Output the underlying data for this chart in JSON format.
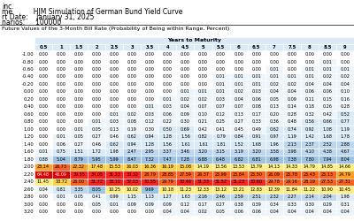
{
  "title_line1": "inc.",
  "label_name": "me",
  "label_start": "rt Date:",
  "label_scen": "narios:",
  "title_line2": "HJM Simulation of German Bund Yield Curve",
  "start_date": "January 31, 2025",
  "scenarios": "100000",
  "table_title": "Future Values of the 3-Month Bill Rate (Probability of Being within Range, Percent)",
  "col_header": "Years to Maturity",
  "col_labels": [
    "0.5",
    "1",
    "1.5",
    "2",
    "2.5",
    "3",
    "3.5",
    "4",
    "4.5",
    "5",
    "5.5",
    "6",
    "6.5",
    "7",
    "7.5",
    "8",
    "8.5",
    "9"
  ],
  "row_labels": [
    "-1.00",
    "-0.80",
    "-0.60",
    "-0.40",
    "-0.20",
    "0.00",
    "0.20",
    "0.40",
    "0.60",
    "0.80",
    "1.00",
    "1.20",
    "1.40",
    "1.60",
    "1.80",
    "2.00",
    "2.20",
    "2.40",
    "2.60",
    "2.80",
    "3.00",
    "3.20"
  ],
  "data": [
    [
      0.0,
      0.0,
      0.0,
      0.0,
      0.0,
      0.0,
      0.0,
      0.0,
      0.0,
      0.0,
      0.0,
      0.0,
      0.0,
      0.0,
      0.0,
      0.0,
      0.0,
      0.0
    ],
    [
      0.0,
      0.0,
      0.0,
      0.0,
      0.0,
      0.0,
      0.0,
      0.0,
      0.0,
      0.0,
      0.0,
      0.0,
      0.0,
      0.0,
      0.0,
      0.0,
      0.01,
      0.0
    ],
    [
      0.0,
      0.0,
      0.0,
      0.0,
      0.0,
      0.0,
      0.0,
      0.0,
      0.0,
      0.0,
      0.0,
      0.0,
      0.0,
      0.01,
      0.0,
      0.01,
      0.01,
      0.01
    ],
    [
      0.0,
      0.0,
      0.0,
      0.0,
      0.0,
      0.0,
      0.0,
      0.0,
      0.0,
      0.0,
      0.01,
      0.01,
      0.01,
      0.01,
      0.01,
      0.01,
      0.02,
      0.02
    ],
    [
      0.0,
      0.0,
      0.0,
      0.0,
      0.0,
      0.0,
      0.0,
      0.0,
      0.0,
      0.0,
      0.01,
      0.01,
      0.01,
      0.02,
      0.02,
      0.04,
      0.04,
      0.04
    ],
    [
      0.0,
      0.0,
      0.0,
      0.0,
      0.0,
      0.0,
      0.0,
      0.0,
      0.01,
      0.01,
      0.01,
      0.02,
      0.03,
      0.04,
      0.04,
      0.06,
      0.06,
      0.1
    ],
    [
      0.0,
      0.0,
      0.0,
      0.0,
      0.0,
      0.0,
      0.0,
      0.01,
      0.02,
      0.02,
      0.03,
      0.04,
      0.06,
      0.05,
      0.09,
      0.11,
      0.15,
      0.16
    ],
    [
      0.0,
      0.0,
      0.0,
      0.0,
      0.0,
      0.0,
      0.01,
      0.03,
      0.04,
      0.07,
      0.07,
      0.07,
      0.08,
      0.13,
      0.14,
      0.18,
      0.26,
      0.28
    ],
    [
      0.0,
      0.0,
      0.0,
      0.0,
      0.01,
      0.02,
      0.03,
      0.06,
      0.09,
      0.1,
      0.12,
      0.13,
      0.17,
      0.2,
      0.28,
      0.32,
      0.42,
      0.52
    ],
    [
      0.0,
      0.0,
      0.0,
      0.01,
      0.03,
      0.08,
      0.12,
      0.22,
      0.3,
      0.21,
      0.25,
      0.27,
      0.33,
      0.36,
      0.48,
      0.56,
      0.66,
      0.77
    ],
    [
      0.0,
      0.0,
      0.01,
      0.05,
      0.13,
      0.19,
      0.3,
      0.5,
      0.69,
      0.42,
      0.41,
      0.45,
      0.49,
      0.62,
      0.74,
      0.92,
      1.08,
      1.19
    ],
    [
      0.0,
      0.01,
      0.05,
      0.27,
      0.46,
      0.62,
      0.94,
      1.28,
      1.56,
      0.82,
      0.79,
      0.84,
      0.91,
      0.97,
      1.19,
      1.42,
      1.68,
      1.78
    ],
    [
      0.0,
      0.06,
      0.27,
      0.46,
      0.62,
      0.94,
      1.28,
      1.56,
      1.61,
      1.61,
      1.81,
      1.52,
      1.68,
      1.96,
      2.13,
      2.37,
      2.52,
      2.88
    ],
    [
      0.01,
      0.75,
      1.51,
      1.72,
      1.98,
      2.47,
      2.95,
      3.37,
      3.46,
      3.2,
      3.15,
      3.19,
      3.2,
      3.58,
      3.98,
      4.1,
      4.38,
      4.67
    ],
    [
      0.88,
      5.04,
      8.79,
      5.95,
      5.99,
      8.47,
      7.32,
      7.47,
      7.28,
      6.88,
      6.48,
      6.82,
      6.81,
      6.98,
      7.38,
      7.8,
      7.94,
      8.04
    ],
    [
      23.14,
      26.73,
      22.32,
      17.48,
      15.53,
      16.03,
      16.36,
      16.19,
      15.08,
      14.19,
      13.56,
      13.53,
      13.79,
      14.13,
      14.33,
      14.79,
      14.85,
      14.66
    ],
    [
      64.48,
      46.09,
      39.55,
      34.05,
      31.23,
      30.32,
      28.79,
      28.85,
      27.59,
      26.37,
      25.99,
      25.84,
      25.5,
      26.09,
      25.78,
      25.43,
      25.13,
      24.79
    ],
    [
      11.45,
      18.72,
      26.0,
      31.72,
      33.1,
      32.03,
      30.55,
      29.79,
      30.46,
      31.33,
      31.52,
      31.23,
      30.6,
      29.78,
      29.16,
      28.19,
      27.53,
      27.31
    ],
    [
      0.04,
      0.81,
      3.35,
      8.05,
      10.25,
      10.02,
      9.69,
      10.18,
      11.23,
      12.33,
      13.12,
      13.21,
      12.83,
      12.39,
      11.84,
      11.22,
      10.9,
      10.45
    ],
    [
      0.0,
      0.01,
      0.05,
      0.41,
      0.99,
      1.15,
      1.13,
      1.27,
      1.63,
      2.16,
      2.46,
      2.59,
      2.51,
      2.32,
      2.27,
      2.14,
      2.04,
      1.98
    ],
    [
      0.0,
      0.0,
      0.0,
      0.05,
      0.01,
      0.09,
      0.09,
      0.09,
      0.12,
      0.17,
      0.27,
      0.38,
      0.39,
      0.34,
      0.33,
      0.3,
      0.29,
      0.31
    ],
    [
      0.0,
      0.0,
      0.0,
      0.0,
      0.0,
      0.0,
      0.0,
      0.04,
      0.04,
      0.02,
      0.05,
      0.06,
      0.06,
      0.04,
      0.04,
      0.04,
      0.04,
      0.04
    ]
  ],
  "color_white": "#ffffff",
  "color_light_blue1": "#daeaf6",
  "color_light_blue2": "#bdd7ee",
  "color_light_blue3": "#9dc3e6",
  "color_yellow": "#ffff99",
  "color_orange": "#ffc000",
  "color_red": "#ff0000",
  "header_bg": "#daeaf6",
  "background_color": "#ffffff"
}
